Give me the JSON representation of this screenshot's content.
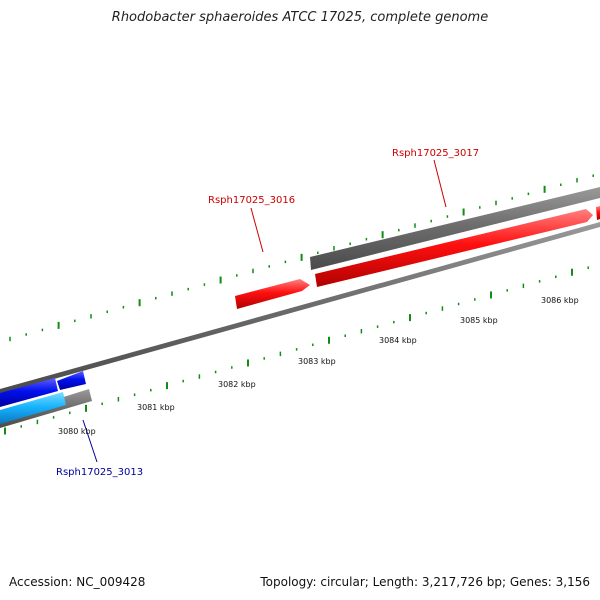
{
  "title": "Rhodobacter sphaeroides ATCC 17025, complete genome",
  "footer": {
    "accession": "Accession: NC_009428",
    "summary": "Topology: circular; Length: 3,217,726 bp; Genes: 3,156"
  },
  "colors": {
    "forward_cds": "#ff0000",
    "reverse_cds": "#0000ff",
    "reverse_cds_light": "#1ab4ff",
    "gene_bar": "#666666",
    "backbone": "#808080",
    "ticks": "#128c12",
    "label_forward": "#cc0000",
    "label_reverse": "#000099"
  },
  "scale_labels": [
    "3080 kbp",
    "3081 kbp",
    "3082 kbp",
    "3083 kbp",
    "3084 kbp",
    "3085 kbp",
    "3086 kbp"
  ],
  "gene_labels": [
    {
      "name": "Rsph17025_3016",
      "strand": "forward"
    },
    {
      "name": "Rsph17025_3017",
      "strand": "forward"
    },
    {
      "name": "Rsph17025_3013",
      "strand": "reverse"
    }
  ]
}
